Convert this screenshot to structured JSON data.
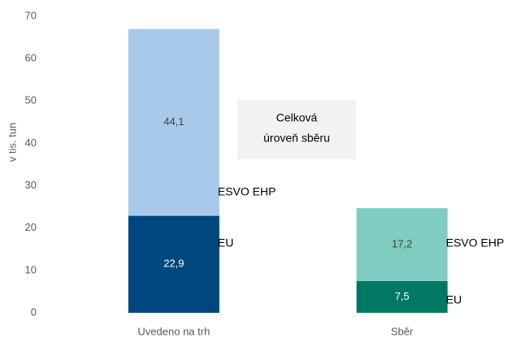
{
  "chart_data": {
    "type": "stacked_bar",
    "y_label": "v tis. tun",
    "categories": [
      "Uvedeno na trh",
      "Sběr"
    ],
    "series": [
      {
        "name": "EU",
        "colors": [
          "#00477d",
          "#007864"
        ],
        "values": [
          22.9,
          7.5
        ],
        "value_labels": [
          "22,9",
          "7,5"
        ]
      },
      {
        "name": "ESVO EHP",
        "colors": [
          "#a8c9ea",
          "#7ecdc0"
        ],
        "values": [
          44.1,
          17.2
        ],
        "value_labels": [
          "44,1",
          "17,2"
        ]
      }
    ],
    "annotation_lines": [
      "Celková",
      "úroveň sběru"
    ],
    "ylim": [
      0,
      70
    ],
    "yticks": [
      0,
      10,
      20,
      30,
      40,
      50,
      60,
      70
    ],
    "grid": false
  }
}
